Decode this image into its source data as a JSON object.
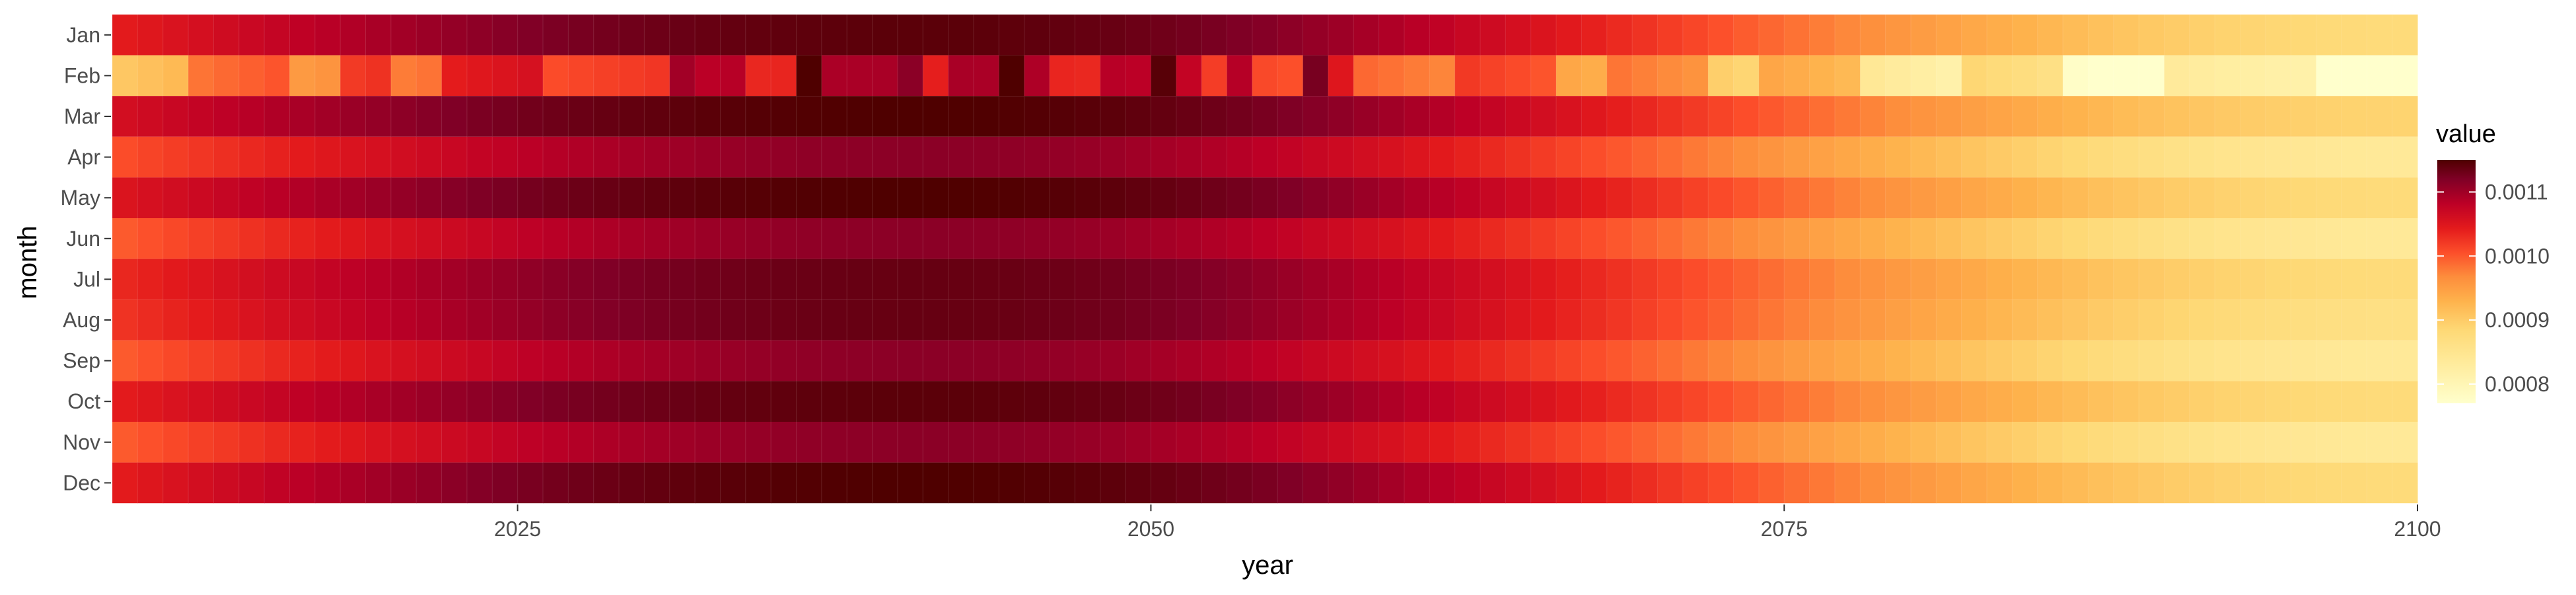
{
  "chart_data": {
    "type": "heatmap",
    "xlabel": "year",
    "ylabel": "month",
    "x_range": [
      2009,
      2100
    ],
    "x_ticks": [
      "2025",
      "2050",
      "2075",
      "2100"
    ],
    "months": [
      "Jan",
      "Feb",
      "Mar",
      "Apr",
      "May",
      "Jun",
      "Jul",
      "Aug",
      "Sep",
      "Oct",
      "Nov",
      "Dec"
    ],
    "legend": {
      "title": "value",
      "position": "right",
      "ticks": [
        "0.0011",
        "0.0010",
        "0.0009",
        "0.0008"
      ],
      "min": 0.00077,
      "max": 0.00115
    },
    "colorscale": [
      "#ffffcc",
      "#ffeda0",
      "#fed976",
      "#feb24c",
      "#fd8d3c",
      "#fc4e2a",
      "#e31a1c",
      "#bd0026",
      "#800026",
      "#4f0000"
    ],
    "feb_breaks": [
      2012,
      2016,
      2018,
      2020,
      2022,
      2026,
      2032,
      2034,
      2036,
      2040,
      2042,
      2046,
      2048,
      2052,
      2056,
      2058,
      2062,
      2066,
      2068,
      2072,
      2074,
      2078,
      2082,
      2086,
      2090,
      2096
    ],
    "peak_year": 2041,
    "series": [
      {
        "name": "Jan",
        "start": 0.00102,
        "peak": 0.00114,
        "end": 0.00085
      },
      {
        "name": "Feb",
        "start": 0.0009,
        "peak": 0.00105,
        "end": 0.00077
      },
      {
        "name": "Mar",
        "start": 0.00104,
        "peak": 0.00115,
        "end": 0.00086
      },
      {
        "name": "Apr",
        "start": 0.00098,
        "peak": 0.0011,
        "end": 0.00082
      },
      {
        "name": "May",
        "start": 0.00103,
        "peak": 0.00115,
        "end": 0.00085
      },
      {
        "name": "Jun",
        "start": 0.00097,
        "peak": 0.0011,
        "end": 0.00082
      },
      {
        "name": "Jul",
        "start": 0.00101,
        "peak": 0.00113,
        "end": 0.00085
      },
      {
        "name": "Aug",
        "start": 0.001,
        "peak": 0.00113,
        "end": 0.00084
      },
      {
        "name": "Sep",
        "start": 0.00097,
        "peak": 0.0011,
        "end": 0.00082
      },
      {
        "name": "Oct",
        "start": 0.00102,
        "peak": 0.00114,
        "end": 0.00085
      },
      {
        "name": "Nov",
        "start": 0.00097,
        "peak": 0.0011,
        "end": 0.00082
      },
      {
        "name": "Dec",
        "start": 0.00102,
        "peak": 0.00115,
        "end": 0.00085
      }
    ]
  }
}
